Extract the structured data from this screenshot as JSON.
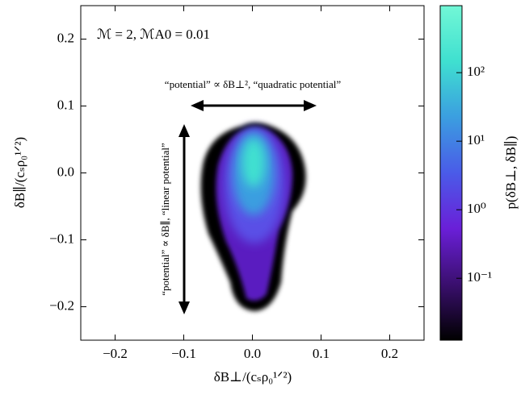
{
  "chart_data": {
    "type": "density",
    "xlabel": "δB⊥/(cₛρ₀¹ᐟ²)",
    "ylabel": "δB∥/(cₛρ₀¹ᐟ²)",
    "colorbar_label": "p(δB⊥, δB∥)",
    "annotations": [
      "ℳ = 2,  ℳA0 = 0.01",
      "“potential” ∝ δB⊥²,  “quadratic potential”",
      "“potential” ∝ δB∥,  “linear potential”"
    ],
    "xlim": [
      -0.25,
      0.25
    ],
    "ylim": [
      -0.25,
      0.25
    ],
    "xticks": [
      {
        "value": -0.2,
        "label": "−0.2"
      },
      {
        "value": -0.1,
        "label": "−0.1"
      },
      {
        "value": 0,
        "label": "0.0"
      },
      0.1,
      0.2
    ],
    "yticks": [
      {
        "value": -0.2,
        "label": "−0.2"
      },
      {
        "value": -0.1,
        "label": "−0.1"
      },
      {
        "value": 0,
        "label": "0.0"
      },
      0.1,
      0.2
    ],
    "clim": [
      0.0125,
      950
    ],
    "cscale": "log",
    "cticks": [
      {
        "value": 0.1,
        "label": "10⁻¹"
      },
      {
        "value": 1,
        "label": "10⁰"
      },
      {
        "value": 10,
        "label": "10¹"
      },
      {
        "value": 100,
        "label": "10²"
      }
    ],
    "colormap": [
      "#000000",
      "#3a0f6e",
      "#6a1fd8",
      "#4a5be8",
      "#3b9ee0",
      "#3fe0d0",
      "#72f7d6"
    ]
  }
}
